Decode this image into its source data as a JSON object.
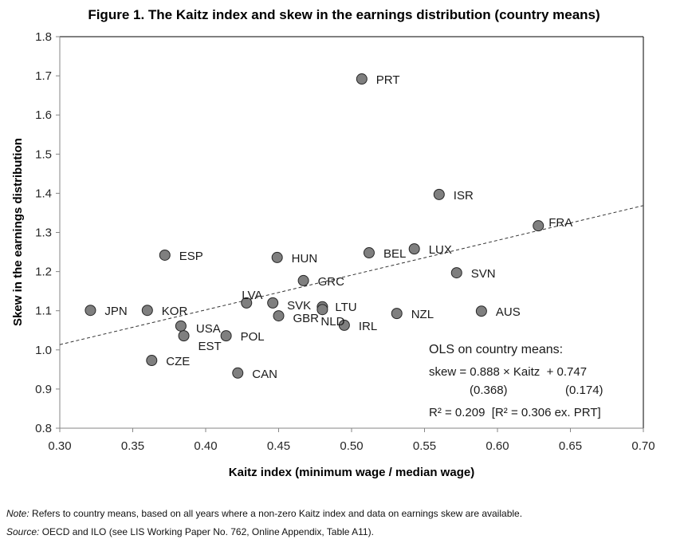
{
  "title": "Figure 1. The Kaitz index and skew in the earnings distribution (country means)",
  "footnotes": {
    "note_label": "Note:",
    "note_text": " Refers to country means, based on all years where a non-zero Kaitz index and data on earnings skew are available.",
    "source_label": "Source:",
    "source_text": " OECD and ILO (see LIS Working Paper No. 762, Online Appendix, Table A11)."
  },
  "annotation": {
    "line1": "OLS on country means:",
    "line2": "skew = 0.888 × Kaitz  + 0.747",
    "se1": "(0.368)",
    "se2": "(0.174)",
    "line4": "R² = 0.209  [R² = 0.306 ex. PRT]"
  },
  "chart_data": {
    "type": "scatter",
    "title": "Figure 1. The Kaitz index and skew in the earnings distribution (country means)",
    "xlabel": "Kaitz index (minimum wage / median wage)",
    "ylabel": "Skew in the earnings distribution",
    "xlim": [
      0.3,
      0.7
    ],
    "ylim": [
      0.8,
      1.8
    ],
    "xticks": [
      "0.30",
      "0.35",
      "0.40",
      "0.45",
      "0.50",
      "0.55",
      "0.60",
      "0.65",
      "0.70"
    ],
    "yticks": [
      "0.8",
      "0.9",
      "1.0",
      "1.1",
      "1.2",
      "1.3",
      "1.4",
      "1.5",
      "1.6",
      "1.7",
      "1.8"
    ],
    "grid": false,
    "legend": "none",
    "marker_color": "#7f7f7f",
    "points": [
      {
        "label": "PRT",
        "x": 0.507,
        "y": 1.692
      },
      {
        "label": "ISR",
        "x": 0.56,
        "y": 1.397
      },
      {
        "label": "FRA",
        "x": 0.628,
        "y": 1.317
      },
      {
        "label": "LUX",
        "x": 0.543,
        "y": 1.258
      },
      {
        "label": "BEL",
        "x": 0.512,
        "y": 1.248
      },
      {
        "label": "ESP",
        "x": 0.372,
        "y": 1.242
      },
      {
        "label": "HUN",
        "x": 0.449,
        "y": 1.236
      },
      {
        "label": "SVN",
        "x": 0.572,
        "y": 1.197
      },
      {
        "label": "GRC",
        "x": 0.467,
        "y": 1.177
      },
      {
        "label": "LVA",
        "x": 0.428,
        "y": 1.12
      },
      {
        "label": "SVK",
        "x": 0.446,
        "y": 1.12
      },
      {
        "label": "LTU",
        "x": 0.48,
        "y": 1.11
      },
      {
        "label": "NLD",
        "x": 0.48,
        "y": 1.103
      },
      {
        "label": "JPN",
        "x": 0.321,
        "y": 1.101
      },
      {
        "label": "KOR",
        "x": 0.36,
        "y": 1.101
      },
      {
        "label": "AUS",
        "x": 0.589,
        "y": 1.099
      },
      {
        "label": "NZL",
        "x": 0.531,
        "y": 1.093
      },
      {
        "label": "GBR",
        "x": 0.45,
        "y": 1.087
      },
      {
        "label": "IRL",
        "x": 0.495,
        "y": 1.063
      },
      {
        "label": "USA",
        "x": 0.383,
        "y": 1.061
      },
      {
        "label": "EST",
        "x": 0.385,
        "y": 1.036
      },
      {
        "label": "POL",
        "x": 0.414,
        "y": 1.036
      },
      {
        "label": "CZE",
        "x": 0.363,
        "y": 0.973
      },
      {
        "label": "CAN",
        "x": 0.422,
        "y": 0.941
      }
    ],
    "trendline": {
      "type": "OLS",
      "slope": 0.888,
      "intercept": 0.747,
      "style": "dashed"
    }
  }
}
